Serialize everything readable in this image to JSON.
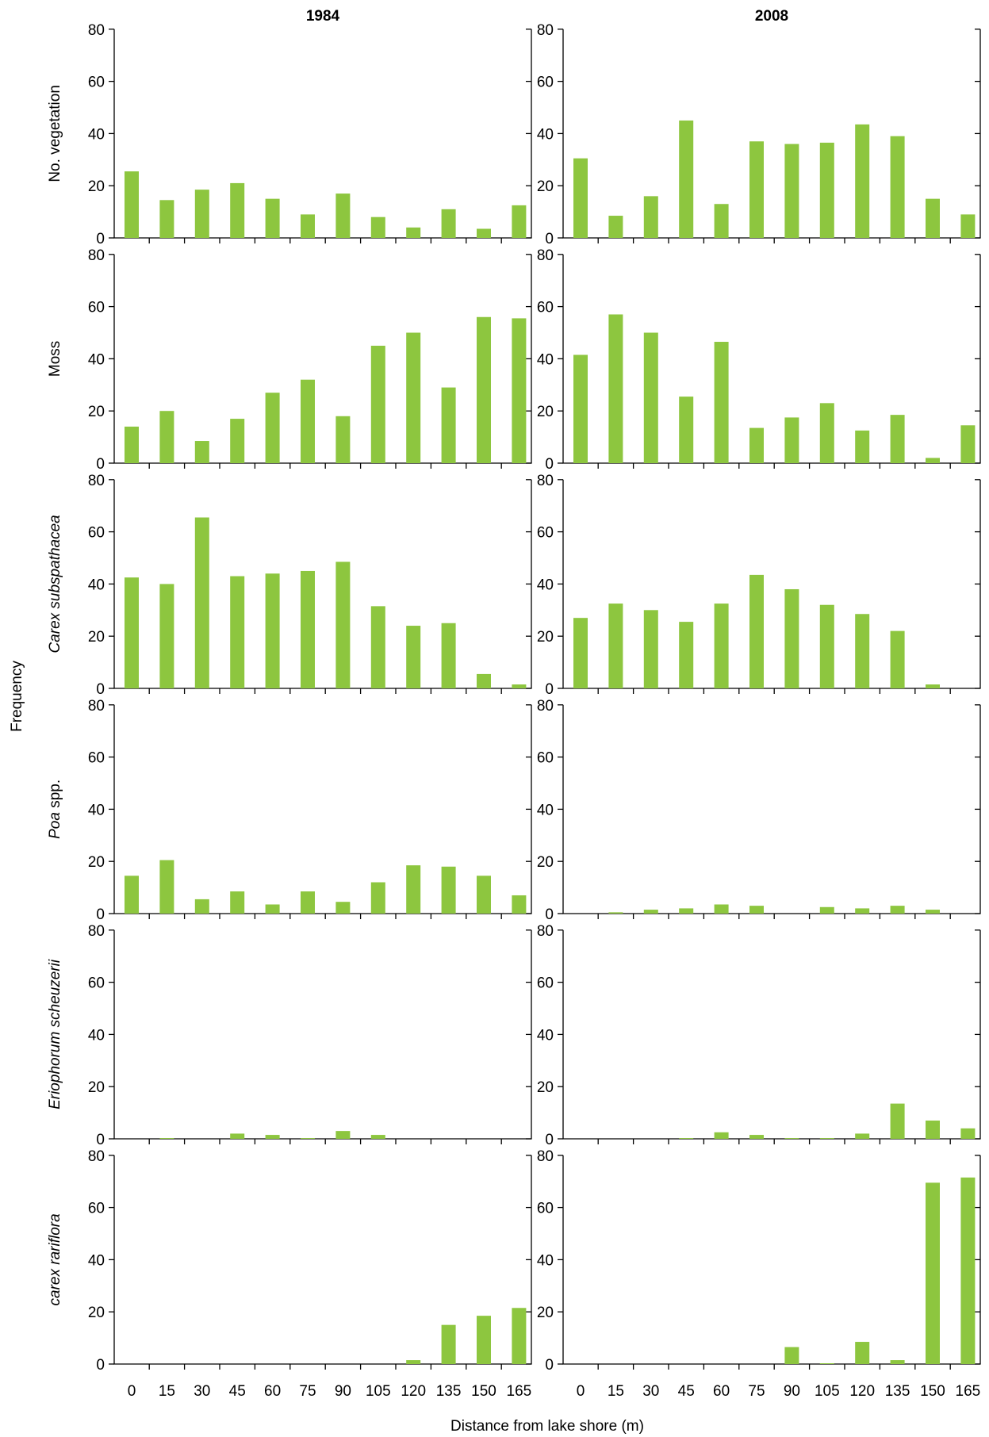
{
  "chart_data": {
    "type": "bar",
    "columns": [
      "1984",
      "2008"
    ],
    "rows": [
      {
        "label": "No. vegetation",
        "italic": false
      },
      {
        "label": "Moss",
        "italic": false
      },
      {
        "label": "Carex subspathacea",
        "italic": true
      },
      {
        "label": "Poa spp.",
        "italic": true,
        "italic_part": "Poa",
        "plain_part": " spp."
      },
      {
        "label": "Eriophorum scheuzerii",
        "italic": true
      },
      {
        "label": "carex rariflora",
        "italic": true
      }
    ],
    "categories": [
      "0",
      "15",
      "30",
      "45",
      "60",
      "75",
      "90",
      "105",
      "120",
      "135",
      "150",
      "165"
    ],
    "ylim": [
      0,
      80
    ],
    "yticks": [
      0,
      20,
      40,
      60,
      80
    ],
    "xlabel": "Distance from lake shore (m)",
    "ylabel": "Frequency",
    "bar_color": "#8dc63f",
    "panels": [
      {
        "row": 0,
        "col": 0,
        "values": [
          25.5,
          14.5,
          18.5,
          21,
          15,
          9,
          17,
          8,
          4,
          11,
          3.5,
          12.5
        ]
      },
      {
        "row": 0,
        "col": 1,
        "values": [
          30.5,
          8.5,
          16,
          45,
          13,
          37,
          36,
          36.5,
          43.5,
          39,
          15,
          9
        ]
      },
      {
        "row": 1,
        "col": 0,
        "values": [
          14,
          20,
          8.5,
          17,
          27,
          32,
          18,
          45,
          50,
          29,
          56,
          55.5
        ]
      },
      {
        "row": 1,
        "col": 1,
        "values": [
          41.5,
          57,
          50,
          25.5,
          46.5,
          13.5,
          17.5,
          23,
          12.5,
          18.5,
          2,
          14.5
        ]
      },
      {
        "row": 2,
        "col": 0,
        "values": [
          42.5,
          40,
          65.5,
          43,
          44,
          45,
          48.5,
          31.5,
          24,
          25,
          5.5,
          1.5
        ]
      },
      {
        "row": 2,
        "col": 1,
        "values": [
          27,
          32.5,
          30,
          25.5,
          32.5,
          43.5,
          38,
          32,
          28.5,
          22,
          1.5,
          0
        ]
      },
      {
        "row": 3,
        "col": 0,
        "values": [
          14.5,
          20.5,
          5.5,
          8.5,
          3.5,
          8.5,
          4.5,
          12,
          18.5,
          18,
          14.5,
          7
        ]
      },
      {
        "row": 3,
        "col": 1,
        "values": [
          0,
          0.5,
          1.5,
          2,
          3.5,
          3,
          0,
          2.5,
          2,
          3,
          1.5,
          0
        ]
      },
      {
        "row": 4,
        "col": 0,
        "values": [
          0,
          0.3,
          0,
          2,
          1.5,
          0.3,
          3,
          1.5,
          0,
          0,
          0,
          0
        ]
      },
      {
        "row": 4,
        "col": 1,
        "values": [
          0,
          0,
          0,
          0.3,
          2.5,
          1.5,
          0.3,
          0.3,
          2,
          13.5,
          7,
          4
        ]
      },
      {
        "row": 5,
        "col": 0,
        "values": [
          0,
          0,
          0,
          0,
          0,
          0,
          0,
          0,
          1.5,
          15,
          18.5,
          21.5
        ]
      },
      {
        "row": 5,
        "col": 1,
        "values": [
          0,
          0,
          0,
          0,
          0,
          0,
          6.5,
          0.3,
          8.5,
          1.5,
          69.5,
          71.5
        ]
      }
    ]
  }
}
